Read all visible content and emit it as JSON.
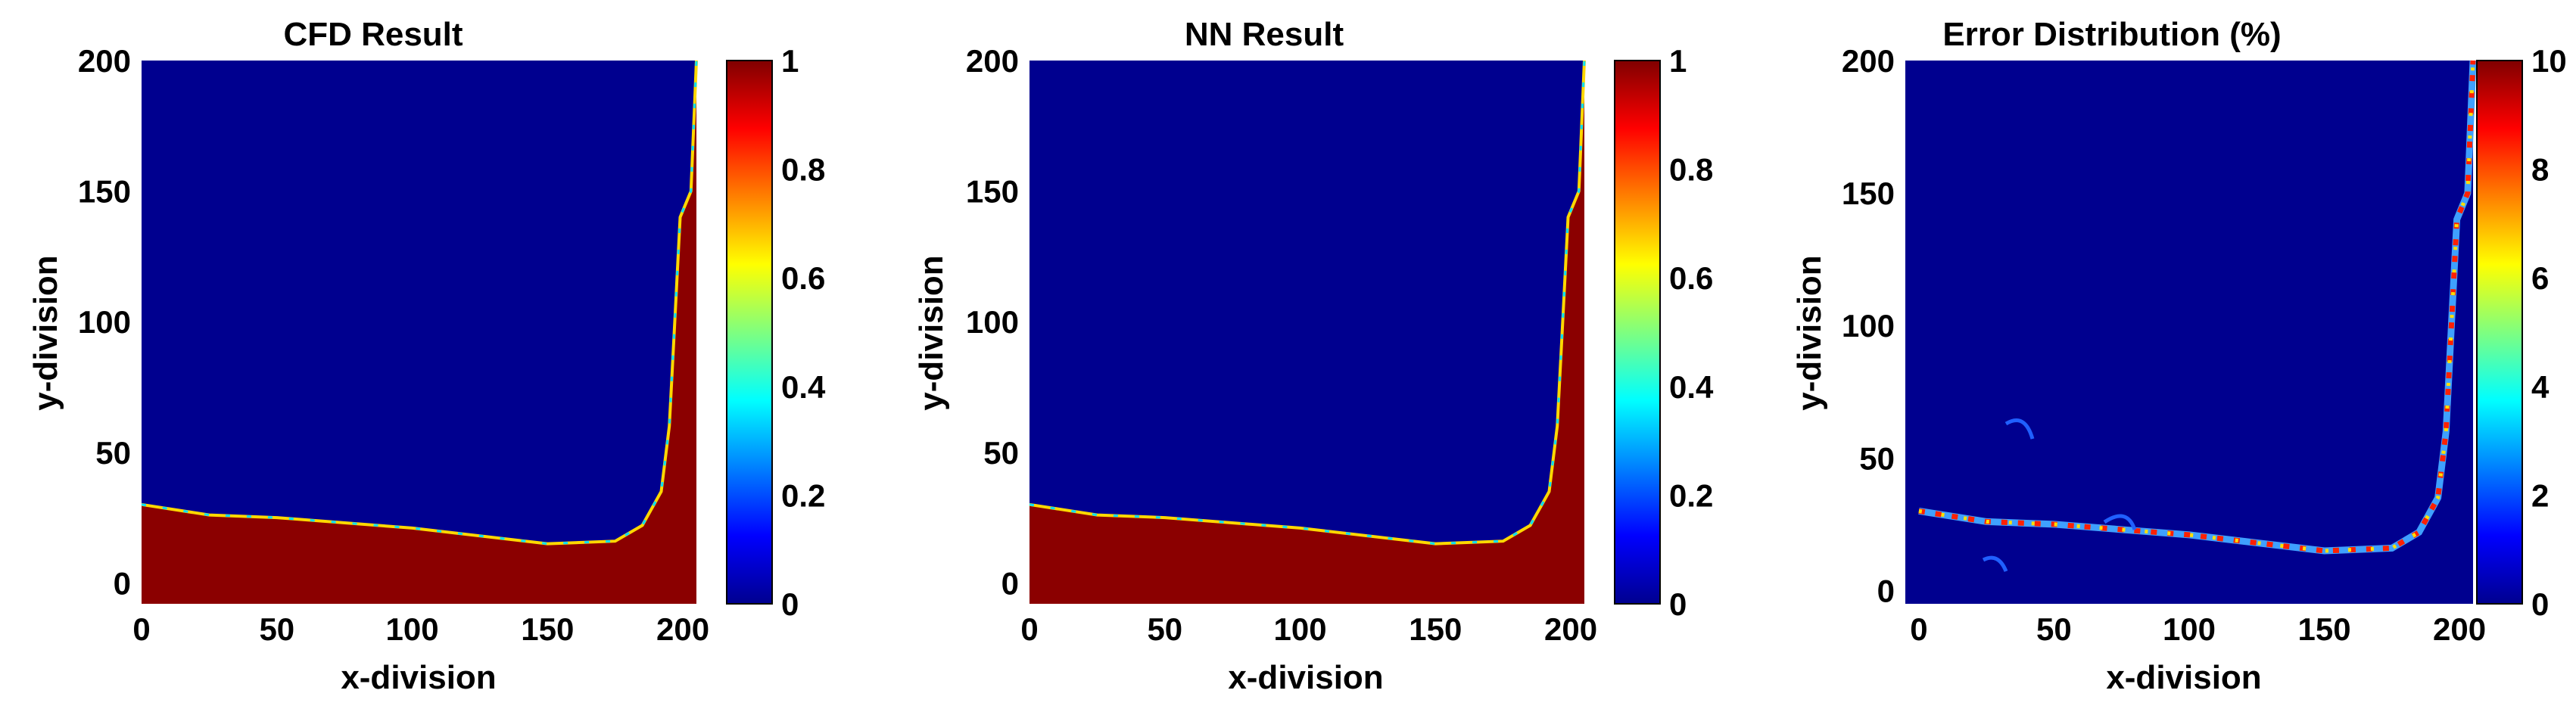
{
  "chart_data": [
    {
      "type": "heatmap",
      "title": "CFD Result",
      "xlabel": "x-division",
      "ylabel": "y-division",
      "xlim": [
        0,
        205
      ],
      "ylim": [
        -8,
        200
      ],
      "x_ticks": [
        0,
        50,
        100,
        150,
        200
      ],
      "y_ticks": [
        0,
        50,
        100,
        150,
        200
      ],
      "colorbar": {
        "range": [
          0,
          1
        ],
        "ticks": [
          "0",
          "0.2",
          "0.4",
          "0.6",
          "0.8",
          "1"
        ],
        "colormap": "jet"
      },
      "field": {
        "background_value": 0,
        "filled_region_value": 1,
        "interface_boundary": [
          [
            0,
            30
          ],
          [
            25,
            26
          ],
          [
            50,
            25
          ],
          [
            100,
            21
          ],
          [
            150,
            15
          ],
          [
            175,
            16
          ],
          [
            185,
            22
          ],
          [
            192,
            35
          ],
          [
            195,
            60
          ],
          [
            197,
            100
          ],
          [
            199,
            140
          ],
          [
            203,
            150
          ],
          [
            205,
            200
          ]
        ]
      }
    },
    {
      "type": "heatmap",
      "title": "NN Result",
      "xlabel": "x-division",
      "ylabel": "y-division",
      "xlim": [
        0,
        205
      ],
      "ylim": [
        -8,
        200
      ],
      "x_ticks": [
        0,
        50,
        100,
        150,
        200
      ],
      "y_ticks": [
        0,
        50,
        100,
        150,
        200
      ],
      "colorbar": {
        "range": [
          0,
          1
        ],
        "ticks": [
          "0",
          "0.2",
          "0.4",
          "0.6",
          "0.8",
          "1"
        ],
        "colormap": "jet"
      },
      "field": {
        "background_value": 0,
        "filled_region_value": 1,
        "interface_boundary": [
          [
            0,
            30
          ],
          [
            25,
            26
          ],
          [
            50,
            25
          ],
          [
            100,
            21
          ],
          [
            150,
            15
          ],
          [
            175,
            16
          ],
          [
            185,
            22
          ],
          [
            192,
            35
          ],
          [
            195,
            60
          ],
          [
            197,
            100
          ],
          [
            199,
            140
          ],
          [
            203,
            150
          ],
          [
            205,
            200
          ]
        ]
      }
    },
    {
      "type": "heatmap",
      "title": "Error Distribution (%)",
      "xlabel": "x-division",
      "ylabel": "y-division",
      "xlim": [
        -5,
        205
      ],
      "ylim": [
        -5,
        200
      ],
      "x_ticks": [
        0,
        50,
        100,
        150,
        200
      ],
      "y_ticks": [
        0,
        50,
        100,
        150,
        200
      ],
      "colorbar": {
        "range": [
          0,
          10
        ],
        "ticks": [
          "0",
          "2",
          "4",
          "6",
          "8",
          "10"
        ],
        "colormap": "jet"
      },
      "field": {
        "background_value": 0,
        "error_band_path": [
          [
            0,
            30
          ],
          [
            25,
            26
          ],
          [
            50,
            25
          ],
          [
            100,
            21
          ],
          [
            150,
            15
          ],
          [
            175,
            16
          ],
          [
            185,
            22
          ],
          [
            192,
            35
          ],
          [
            195,
            60
          ],
          [
            197,
            100
          ],
          [
            199,
            140
          ],
          [
            203,
            150
          ],
          [
            205,
            200
          ]
        ]
      }
    }
  ]
}
